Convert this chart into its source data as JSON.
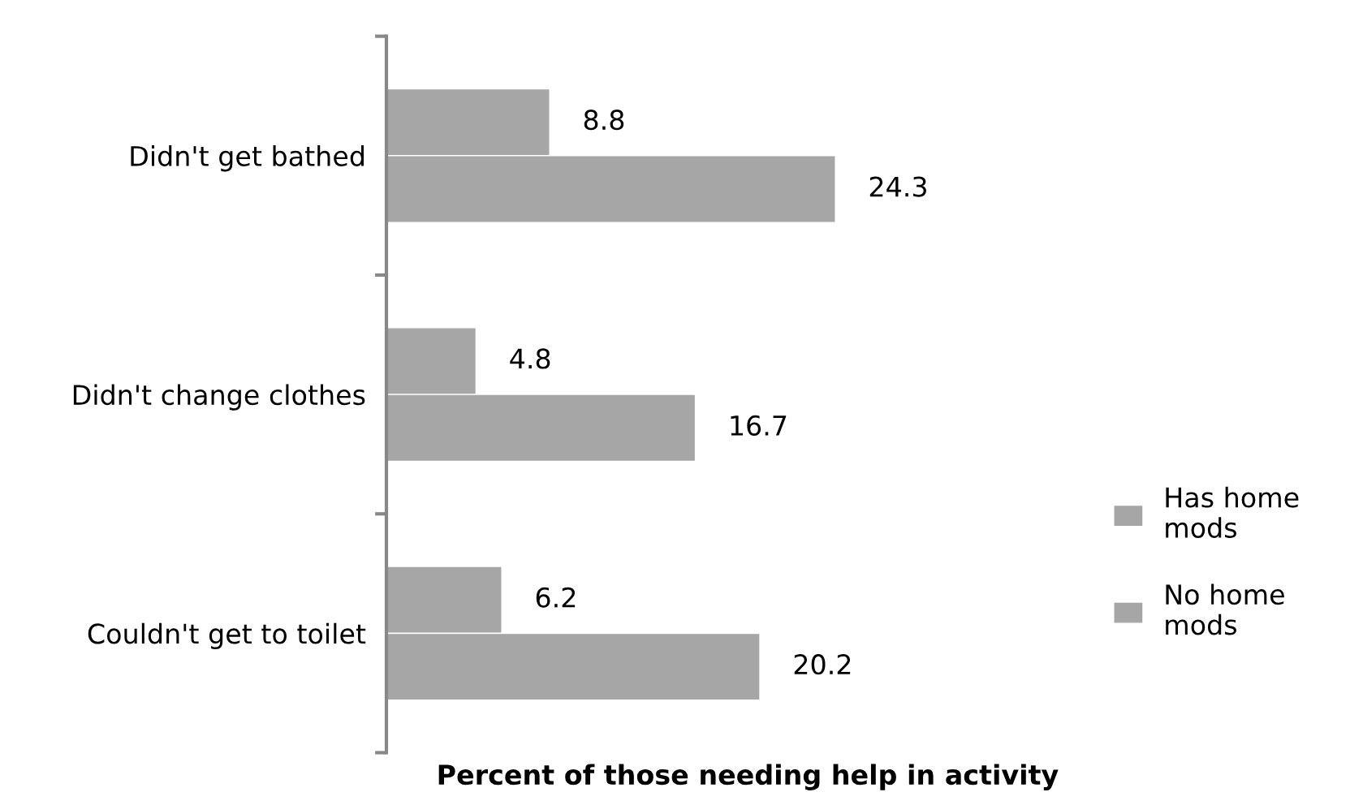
{
  "chart_data": {
    "type": "bar",
    "orientation": "horizontal",
    "xlabel": "Percent of those needing help in activity",
    "categories": [
      "Didn't get bathed",
      "Didn't change clothes",
      "Couldn't get to toilet"
    ],
    "series": [
      {
        "name": "Has home mods",
        "color": "#a6a6a6",
        "values": [
          8.8,
          4.8,
          6.2
        ]
      },
      {
        "name": "No home mods",
        "color": "#a6a6a6",
        "values": [
          24.3,
          16.7,
          20.2
        ]
      }
    ],
    "data_labels": true,
    "legend": "right",
    "grid": false
  }
}
